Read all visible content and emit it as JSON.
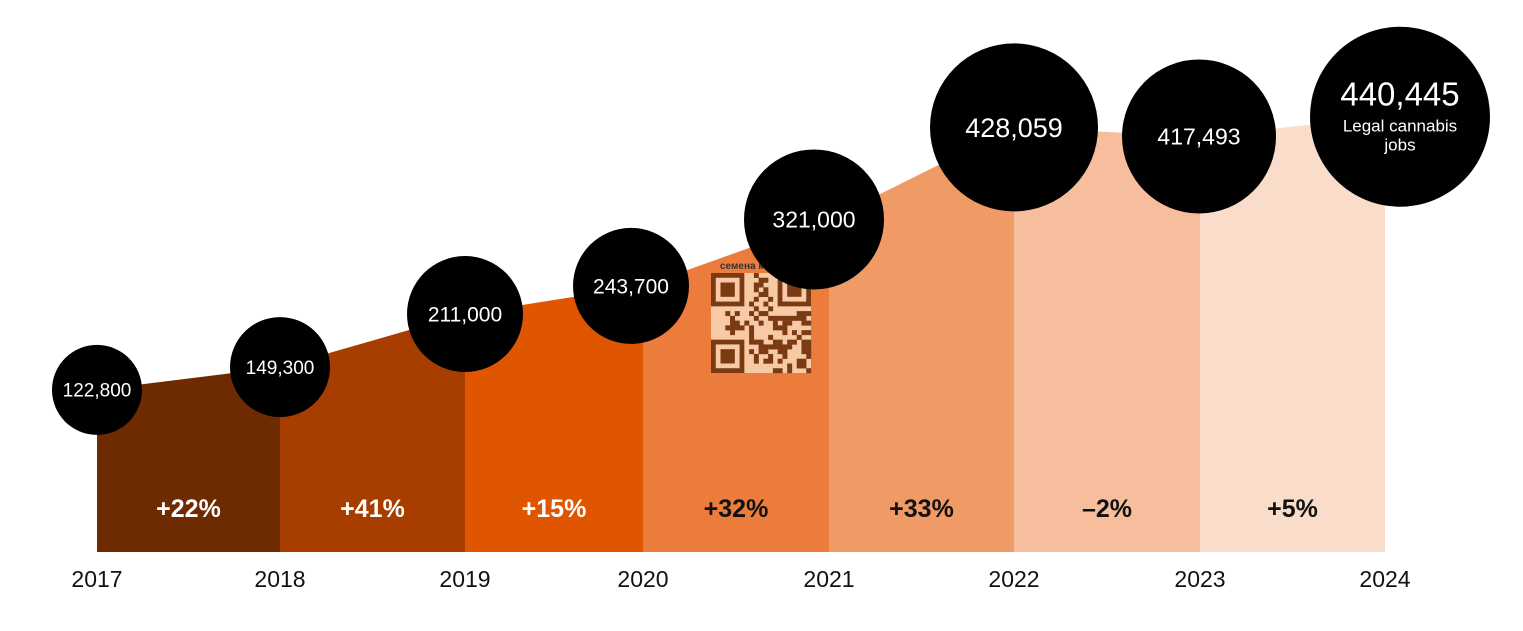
{
  "chart_data": {
    "type": "area",
    "x": [
      "2017",
      "2018",
      "2019",
      "2020",
      "2021",
      "2022",
      "2023",
      "2024"
    ],
    "values": [
      122800,
      149300,
      211000,
      243700,
      321000,
      428059,
      417493,
      440445
    ],
    "value_labels": [
      "122,800",
      "149,300",
      "211,000",
      "243,700",
      "321,000",
      "428,059",
      "417,493",
      "440,445"
    ],
    "final_label_caption": "Legal cannabis jobs",
    "growth_labels": [
      "+22%",
      "+41%",
      "+15%",
      "+32%",
      "+33%",
      "–2%",
      "+5%"
    ],
    "segment_colors": [
      "#6E2A00",
      "#A83D00",
      "#E05500",
      "#EC7C3C",
      "#F09A66",
      "#F6BE9C",
      "#F9DDCA"
    ],
    "growth_label_colors": [
      "#ffffff",
      "#ffffff",
      "#ffffff",
      "#111111",
      "#111111",
      "#111111",
      "#111111"
    ],
    "bubble_color": "#000000",
    "title": "",
    "xlabel": "",
    "ylabel": ""
  },
  "watermark": {
    "caption": "семена конопли"
  }
}
